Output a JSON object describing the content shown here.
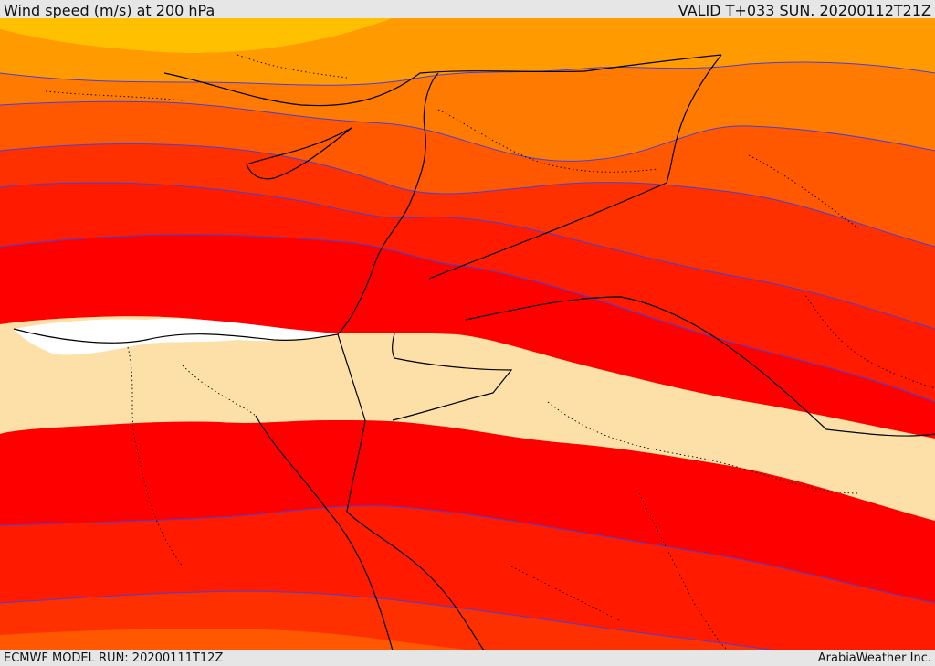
{
  "header": {
    "title": "Wind speed (m/s) at 200 hPa",
    "valid_time": "VALID T+033 SUN. 20200112T21Z"
  },
  "footer": {
    "model_run": "ECMWF MODEL RUN: 20200111T12Z",
    "credit": "ArabiaWeather Inc."
  },
  "colors": {
    "band_fill_yellow": "#ffc000",
    "band_fill_orange_light": "#ff9a00",
    "band_fill_orange": "#ff7a00",
    "band_fill_orange_dark": "#ff5800",
    "band_fill_red_orange": "#ff3000",
    "band_fill_red": "#ff1a00",
    "band_fill_core": "#ff0000",
    "band_fill_weak": "#fde0a8",
    "band_fill_min": "#ffffff",
    "contour": "#4b3fd6",
    "coastline": "#000000"
  }
}
